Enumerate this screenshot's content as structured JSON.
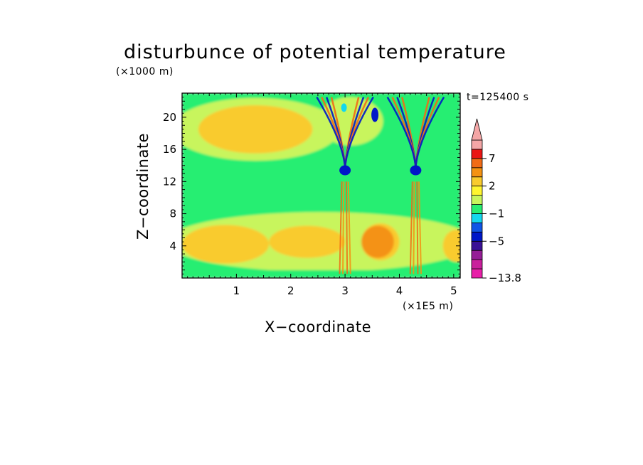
{
  "chart_data": {
    "type": "heatmap",
    "title": "disturbunce of potential temperature",
    "xlabel": "X−coordinate",
    "ylabel": "Z−coordinate",
    "x_unit": "(×1E5 m)",
    "y_unit": "(×1000 m)",
    "annotation": "t=125400 s",
    "xlim": [
      0,
      5.12
    ],
    "ylim": [
      0,
      23
    ],
    "x_ticks": [
      1,
      2,
      3,
      4,
      5
    ],
    "y_ticks": [
      4,
      8,
      12,
      16,
      20
    ],
    "colorbar": {
      "levels": [
        -13.8,
        -11,
        -9,
        -7,
        -5,
        -4,
        -3,
        -1,
        0,
        1,
        2,
        3,
        5,
        7,
        9
      ],
      "colors": [
        "#e81fa8",
        "#c91f9c",
        "#951d96",
        "#3a1196",
        "#0017c8",
        "#0f55e6",
        "#14d7ee",
        "#27ee72",
        "#c8f55d",
        "#fff52f",
        "#f9cb2d",
        "#f49212",
        "#f16b16",
        "#ea1514",
        "#f4a6a6"
      ],
      "extend": "max",
      "tick_labels": [
        "7",
        "2",
        "−1",
        "−5",
        "−13.8"
      ]
    },
    "features": {
      "upper_left_warm": {
        "x": [
          0.3,
          2.4
        ],
        "z": [
          15.5,
          21.5
        ],
        "value": 2
      },
      "cold_band": {
        "x": [
          0.0,
          5.1
        ],
        "z": [
          12.4,
          14.2
        ],
        "value": -1
      },
      "lower_warm_layer": {
        "x": [
          0.0,
          5.1
        ],
        "z": [
          1.5,
          7.5
        ],
        "value": 2
      },
      "warm_pool_mid": {
        "x": [
          3.3,
          3.9
        ],
        "z": [
          2.5,
          6.5
        ],
        "value": 3
      },
      "wave_column_1": {
        "x": 3.0,
        "z": [
          0.5,
          22.5
        ],
        "min_value": -5,
        "max_value": 7
      },
      "wave_column_2": {
        "x": 4.3,
        "z": [
          0.5,
          22.5
        ],
        "min_value": -5,
        "max_value": 7
      }
    }
  }
}
